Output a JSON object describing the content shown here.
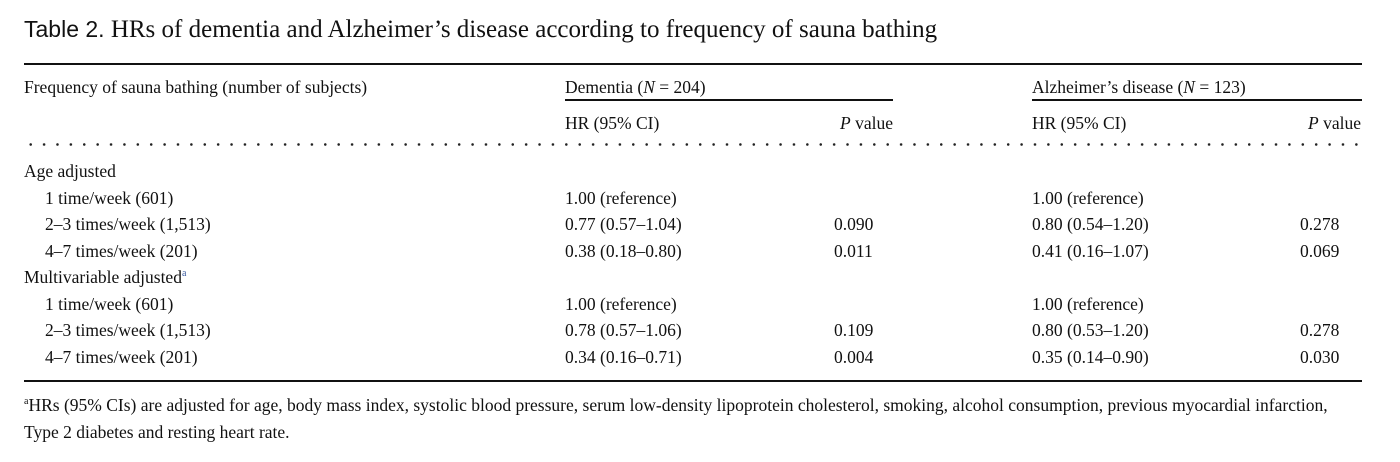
{
  "caption": {
    "label": "Table 2.",
    "text": "HRs of dementia and Alzheimer’s disease according to frequency of sauna bathing"
  },
  "header": {
    "stub": "Frequency of sauna bathing (number of subjects)",
    "dementia_pre": "Dementia (",
    "dementia_n": "N",
    "dementia_post": " = 204)",
    "alzheimers_pre": "Alzheimer’s disease (",
    "alzheimers_n": "N",
    "alzheimers_post": " = 123)",
    "hr_ci": "HR (95% CI)",
    "p_italic": "P",
    "p_rest": " value"
  },
  "groups": [
    {
      "label": "Age adjusted",
      "note": "",
      "rows": [
        {
          "freq": "1 time/week (601)",
          "dem_hr": "1.00 (reference)",
          "dem_p": "",
          "alz_hr": "1.00 (reference)",
          "alz_p": ""
        },
        {
          "freq": "2–3 times/week (1,513)",
          "dem_hr": "0.77 (0.57–1.04)",
          "dem_p": "0.090",
          "alz_hr": "0.80 (0.54–1.20)",
          "alz_p": "0.278"
        },
        {
          "freq": "4–7 times/week (201)",
          "dem_hr": "0.38 (0.18–0.80)",
          "dem_p": "0.011",
          "alz_hr": "0.41 (0.16–1.07)",
          "alz_p": "0.069"
        }
      ]
    },
    {
      "label": "Multivariable adjusted",
      "note": "a",
      "rows": [
        {
          "freq": "1 time/week (601)",
          "dem_hr": "1.00 (reference)",
          "dem_p": "",
          "alz_hr": "1.00 (reference)",
          "alz_p": ""
        },
        {
          "freq": "2–3 times/week (1,513)",
          "dem_hr": "0.78 (0.57–1.06)",
          "dem_p": "0.109",
          "alz_hr": "0.80 (0.53–1.20)",
          "alz_p": "0.278"
        },
        {
          "freq": "4–7 times/week (201)",
          "dem_hr": "0.34 (0.16–0.71)",
          "dem_p": "0.004",
          "alz_hr": "0.35 (0.14–0.90)",
          "alz_p": "0.030"
        }
      ]
    }
  ],
  "footnote": {
    "marker": "a",
    "text": "HRs (95% CIs) are adjusted for age, body mass index, systolic blood pressure, serum low-density lipoprotein cholesterol, smoking, alcohol consumption, previous myocardial infarction, Type 2 diabetes and resting heart rate."
  },
  "colors": {
    "text": "#111111",
    "note_marker": "#3a5ba0"
  }
}
